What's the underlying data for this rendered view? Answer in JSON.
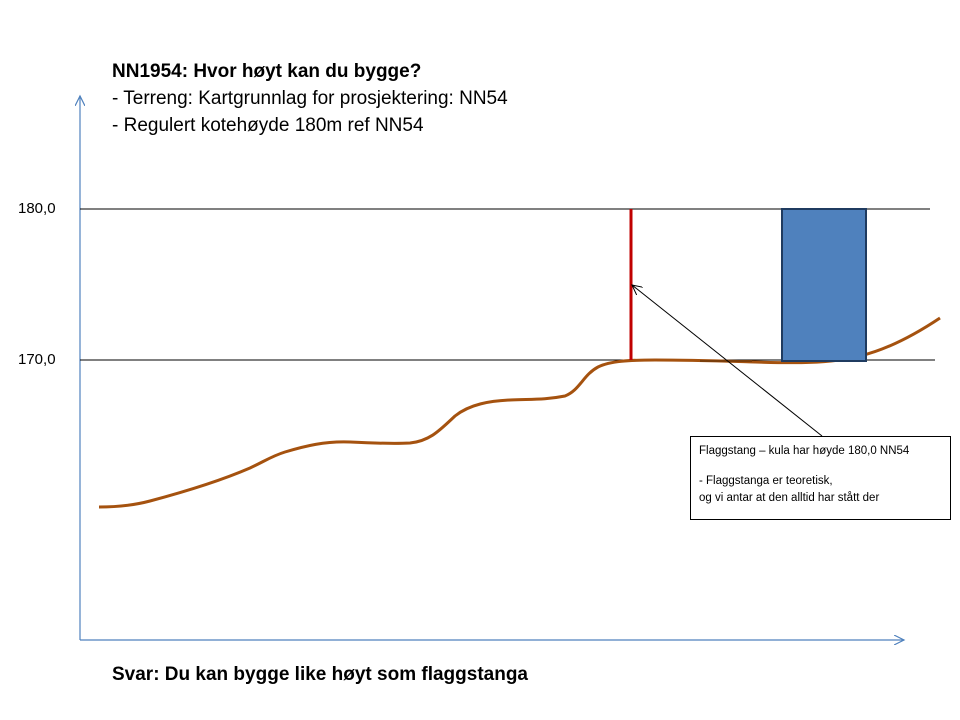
{
  "heading": {
    "title": "NN1954: Hvor høyt kan du bygge?",
    "line2": "- Terreng:  Kartgrunnlag for prosjektering: NN54",
    "line3": "- Regulert kotehøyde 180m ref NN54"
  },
  "y_ticks": [
    "180,0",
    "170,0"
  ],
  "callout": {
    "line1": "Flaggstang – kula har høyde 180,0 NN54",
    "line2": "- Flaggstanga er teoretisk,",
    "line3": "og vi antar at den alltid har stått der"
  },
  "answer": "Svar: Du kan bygge like høyt som flaggstanga",
  "colors": {
    "axis": "#4f81bd",
    "terrain": "#a5520f",
    "flagpole": "#c00000",
    "building_fill": "#4f81bd",
    "building_stroke": "#1f3b60",
    "reference_line": "#000000"
  },
  "chart_data": {
    "type": "line",
    "y_reference_levels": [
      180.0,
      170.0
    ],
    "flagpole_top_height": 180.0,
    "building_top_height": 180.0
  }
}
